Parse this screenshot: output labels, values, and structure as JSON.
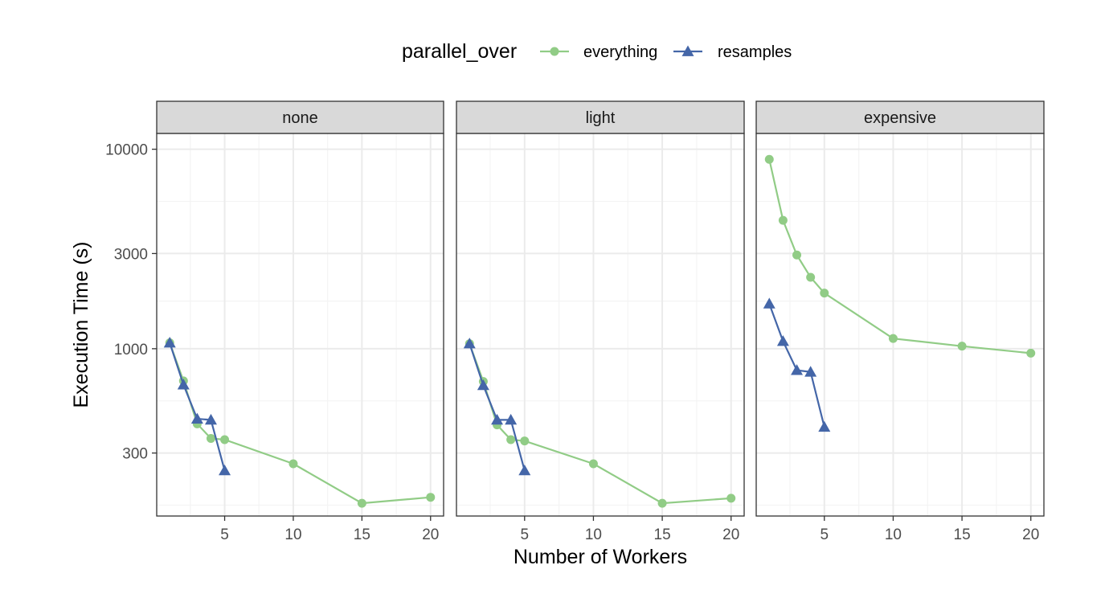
{
  "chart_data": {
    "type": "line",
    "y_scale": "log10",
    "ylabel": "Execution Time (s)",
    "xlabel": "Number of Workers",
    "ylim": [
      145,
      12000
    ],
    "xlim": [
      0.05,
      20.95
    ],
    "y_ticks": [
      300,
      1000,
      3000,
      10000
    ],
    "x_ticks": [
      5,
      10,
      15,
      20
    ],
    "grid": true,
    "legend": {
      "title": "parallel_over",
      "placement": "top",
      "entries": [
        "everything",
        "resamples"
      ]
    },
    "colors": {
      "everything": "#91cc86",
      "resamples": "#4466a8",
      "strip_bg": "#d9d9d9",
      "panel_border": "#333333",
      "grid_major": "#ebebeb",
      "grid_minor": "#f4f4f4"
    },
    "panels": [
      {
        "title": "none",
        "series": [
          {
            "name": "everything",
            "marker": "circle",
            "x": [
              1,
              2,
              3,
              4,
              5,
              10,
              15,
              20
            ],
            "y": [
              1070,
              690,
              420,
              355,
              350,
              265,
              168,
              180
            ]
          },
          {
            "name": "resamples",
            "marker": "triangle",
            "x": [
              1,
              2,
              3,
              4,
              5
            ],
            "y": [
              1070,
              660,
              445,
              440,
              245
            ]
          }
        ]
      },
      {
        "title": "light",
        "series": [
          {
            "name": "everything",
            "marker": "circle",
            "x": [
              1,
              2,
              3,
              4,
              5,
              10,
              15,
              20
            ],
            "y": [
              1060,
              685,
              415,
              350,
              345,
              265,
              168,
              178
            ]
          },
          {
            "name": "resamples",
            "marker": "triangle",
            "x": [
              1,
              2,
              3,
              4,
              5
            ],
            "y": [
              1060,
              655,
              440,
              440,
              245
            ]
          }
        ]
      },
      {
        "title": "expensive",
        "series": [
          {
            "name": "everything",
            "marker": "circle",
            "x": [
              1,
              2,
              3,
              4,
              5,
              10,
              15,
              20
            ],
            "y": [
              8900,
              4400,
              2950,
              2280,
              1900,
              1125,
              1030,
              950
            ]
          },
          {
            "name": "resamples",
            "marker": "triangle",
            "x": [
              1,
              2,
              3,
              4,
              5
            ],
            "y": [
              1680,
              1090,
              780,
              765,
              405
            ]
          }
        ]
      }
    ]
  }
}
